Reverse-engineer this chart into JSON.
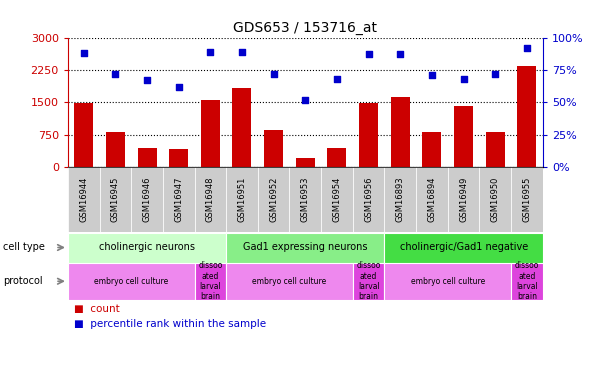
{
  "title": "GDS653 / 153716_at",
  "samples": [
    "GSM16944",
    "GSM16945",
    "GSM16946",
    "GSM16947",
    "GSM16948",
    "GSM16951",
    "GSM16952",
    "GSM16953",
    "GSM16954",
    "GSM16956",
    "GSM16893",
    "GSM16894",
    "GSM16949",
    "GSM16950",
    "GSM16955"
  ],
  "counts": [
    1480,
    820,
    430,
    420,
    1550,
    1820,
    860,
    200,
    430,
    1480,
    1620,
    800,
    1410,
    800,
    2350
  ],
  "percentile_ranks": [
    88,
    72,
    67,
    62,
    89,
    89,
    72,
    52,
    68,
    87,
    87,
    71,
    68,
    72,
    92
  ],
  "bar_color": "#cc0000",
  "dot_color": "#0000cc",
  "ylim_left": [
    0,
    3000
  ],
  "ylim_right": [
    0,
    100
  ],
  "yticks_left": [
    0,
    750,
    1500,
    2250,
    3000
  ],
  "yticks_right": [
    0,
    25,
    50,
    75,
    100
  ],
  "cell_type_groups": [
    {
      "label": "cholinergic neurons",
      "start": 0,
      "end": 5,
      "color": "#ccffcc"
    },
    {
      "label": "Gad1 expressing neurons",
      "start": 5,
      "end": 10,
      "color": "#88ee88"
    },
    {
      "label": "cholinergic/Gad1 negative",
      "start": 10,
      "end": 15,
      "color": "#44dd44"
    }
  ],
  "protocol_groups": [
    {
      "label": "embryo cell culture",
      "start": 0,
      "end": 4,
      "color": "#ee88ee"
    },
    {
      "label": "dissoo\nated\nlarval\nbrain",
      "start": 4,
      "end": 5,
      "color": "#dd44dd"
    },
    {
      "label": "embryo cell culture",
      "start": 5,
      "end": 9,
      "color": "#ee88ee"
    },
    {
      "label": "dissoo\nated\nlarval\nbrain",
      "start": 9,
      "end": 10,
      "color": "#dd44dd"
    },
    {
      "label": "embryo cell culture",
      "start": 10,
      "end": 14,
      "color": "#ee88ee"
    },
    {
      "label": "dissoo\nated\nlarval\nbrain",
      "start": 14,
      "end": 15,
      "color": "#dd44dd"
    }
  ],
  "legend_count_color": "#cc0000",
  "legend_dot_color": "#0000cc",
  "bg_color": "#ffffff",
  "xtick_bg_color": "#cccccc",
  "left_label_color": "#888888",
  "axis_label_color_left": "#cc0000",
  "axis_label_color_right": "#0000cc"
}
